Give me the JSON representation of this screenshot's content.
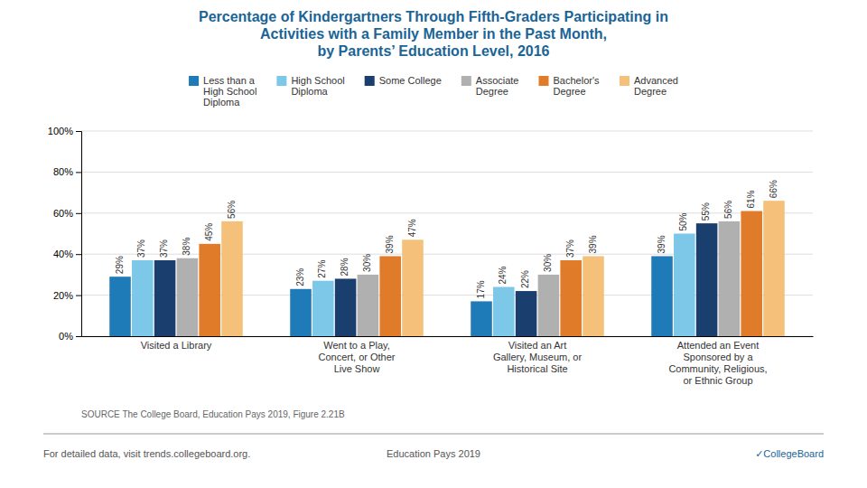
{
  "chart_data": {
    "type": "bar",
    "title": "Percentage of Kindergartners Through Fifth-Graders Participating in\nActivities with a Family Member in the Past Month,\nby Parents’ Education Level, 2016",
    "categories": [
      "Visited a Library",
      "Went to a Play,\nConcert, or Other\nLive Show",
      "Visited an Art\nGallery, Museum, or\nHistorical Site",
      "Attended an Event\nSponsored by a\nCommunity, Religious,\nor Ethnic Group"
    ],
    "series": [
      {
        "name": "Less than a\nHigh School\nDiploma",
        "color": "#1f7bb8",
        "values": [
          29,
          23,
          17,
          39
        ],
        "value_labels": [
          "29%",
          "23%",
          "17%",
          "39%"
        ]
      },
      {
        "name": "High School\nDiploma",
        "color": "#7dc8e8",
        "values": [
          37,
          27,
          24,
          50
        ],
        "value_labels": [
          "37%",
          "27%",
          "24%",
          "50%"
        ]
      },
      {
        "name": "Some College",
        "color": "#1a3f6f",
        "values": [
          37,
          28,
          22,
          55
        ],
        "value_labels": [
          "37%",
          "28%",
          "22%",
          "55%"
        ]
      },
      {
        "name": "Associate\nDegree",
        "color": "#b0b0b0",
        "values": [
          38,
          30,
          30,
          56
        ],
        "value_labels": [
          "38%",
          "30%",
          "30%",
          "56%"
        ]
      },
      {
        "name": "Bachelor's\nDegree",
        "color": "#e07b2a",
        "values": [
          45,
          39,
          37,
          61
        ],
        "value_labels": [
          "45%",
          "39%",
          "37%",
          "61%"
        ]
      },
      {
        "name": "Advanced\nDegree",
        "color": "#f5c07a",
        "values": [
          56,
          47,
          39,
          66
        ],
        "value_labels": [
          "56%",
          "47%",
          "39%",
          "66%"
        ]
      }
    ],
    "ylim": [
      0,
      100
    ],
    "yticks": [
      {
        "value": 0,
        "label": "0%"
      },
      {
        "value": 20,
        "label": "20%"
      },
      {
        "value": 40,
        "label": "40%"
      },
      {
        "value": 60,
        "label": "60%"
      },
      {
        "value": 80,
        "label": "80%"
      },
      {
        "value": 100,
        "label": "100%"
      }
    ],
    "grid": true,
    "legend": "top",
    "data_labels": true,
    "annotations": [
      "SOURCE  The College Board, Education Pays 2019, Figure 2.21B",
      "For detailed data, visit trends.collegeboard.org.",
      "Education Pays 2019",
      "✓CollegeBoard"
    ]
  }
}
